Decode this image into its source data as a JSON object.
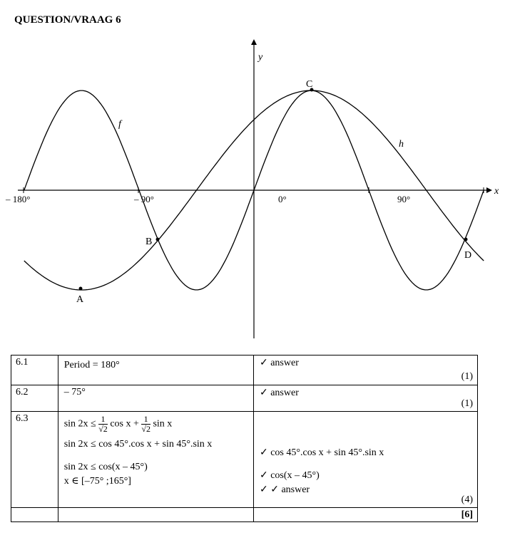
{
  "heading": "QUESTION/VRAAG 6",
  "graph": {
    "x_axis_label": "x",
    "y_axis_label": "y",
    "tick_labels": [
      "– 180°",
      "– 90°",
      "0°",
      "90°"
    ],
    "curve_labels": {
      "f": "f",
      "h": "h"
    },
    "point_labels": {
      "A": "A",
      "B": "B",
      "C": "C",
      "D": "D"
    }
  },
  "table": {
    "rows": [
      {
        "num": "6.1",
        "answer_lines": [
          "Period = 180°"
        ],
        "marking_lines": [
          "✓ answer"
        ],
        "marks": "(1)"
      },
      {
        "num": "6.2",
        "answer_lines": [
          "– 75°"
        ],
        "marking_lines": [
          "✓ answer"
        ],
        "marks": "(1)"
      },
      {
        "num": "6.3",
        "answer_line1": {
          "lhs": "sin 2x ≤",
          "num": "1",
          "den": "√2",
          "mid": "cos x +",
          "end": "sin x"
        },
        "answer_lines": [
          "sin 2x ≤ cos 45°.cos x + sin 45°.sin x",
          "sin 2x ≤ cos(x – 45°)",
          "x ∈ [–75° ;165°]"
        ],
        "marking_lines": [
          "✓ cos 45°.cos x + sin 45°.sin x",
          "✓ cos(x – 45°)",
          "✓ ✓ answer"
        ],
        "marks": "(4)"
      }
    ],
    "total": "[6]"
  }
}
